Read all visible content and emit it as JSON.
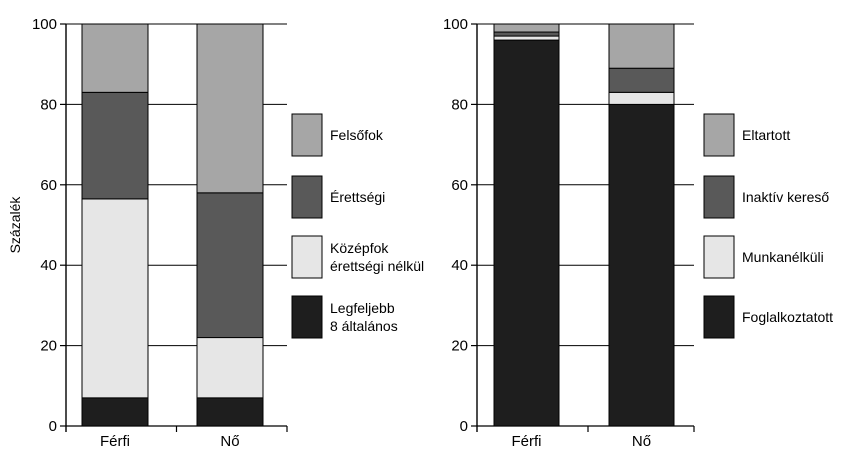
{
  "chart_data": [
    {
      "type": "bar",
      "stacked": true,
      "categories": [
        "Férfi",
        "Nő"
      ],
      "ylabel": "Százalék",
      "ylim": [
        0,
        100
      ],
      "yticks": [
        "0",
        "20",
        "40",
        "60",
        "80",
        "100"
      ],
      "grid": true,
      "legend_position": "right",
      "series": [
        {
          "name": "Legfeljebb 8 általános",
          "label_lines": [
            "Legfeljebb",
            "8 általános"
          ],
          "color": "#1e1e1e",
          "values": [
            7,
            7
          ]
        },
        {
          "name": "Középfok érettségi nélkül",
          "label_lines": [
            "Középfok",
            "érettségi nélkül"
          ],
          "color": "#e6e6e6",
          "values": [
            49.5,
            15
          ]
        },
        {
          "name": "Érettségi",
          "label_lines": [
            "Érettségi"
          ],
          "color": "#595959",
          "values": [
            26.5,
            36
          ]
        },
        {
          "name": "Felsőfok",
          "label_lines": [
            "Felsőfok"
          ],
          "color": "#a6a6a6",
          "values": [
            17,
            42
          ]
        }
      ]
    },
    {
      "type": "bar",
      "stacked": true,
      "categories": [
        "Férfi",
        "Nő"
      ],
      "ylabel": "",
      "ylim": [
        0,
        100
      ],
      "yticks": [
        "0",
        "20",
        "40",
        "60",
        "80",
        "100"
      ],
      "grid": true,
      "legend_position": "right",
      "series": [
        {
          "name": "Foglalkoztatott",
          "label_lines": [
            "Foglalkoztatott"
          ],
          "color": "#1e1e1e",
          "values": [
            96,
            80
          ]
        },
        {
          "name": "Munkanélküli",
          "label_lines": [
            "Munkanélküli"
          ],
          "color": "#e6e6e6",
          "values": [
            1,
            3
          ]
        },
        {
          "name": "Inaktív kereső",
          "label_lines": [
            "Inaktív kereső"
          ],
          "color": "#595959",
          "values": [
            1,
            6
          ]
        },
        {
          "name": "Eltartott",
          "label_lines": [
            "Eltartott"
          ],
          "color": "#a6a6a6",
          "values": [
            2,
            11
          ]
        }
      ]
    }
  ]
}
